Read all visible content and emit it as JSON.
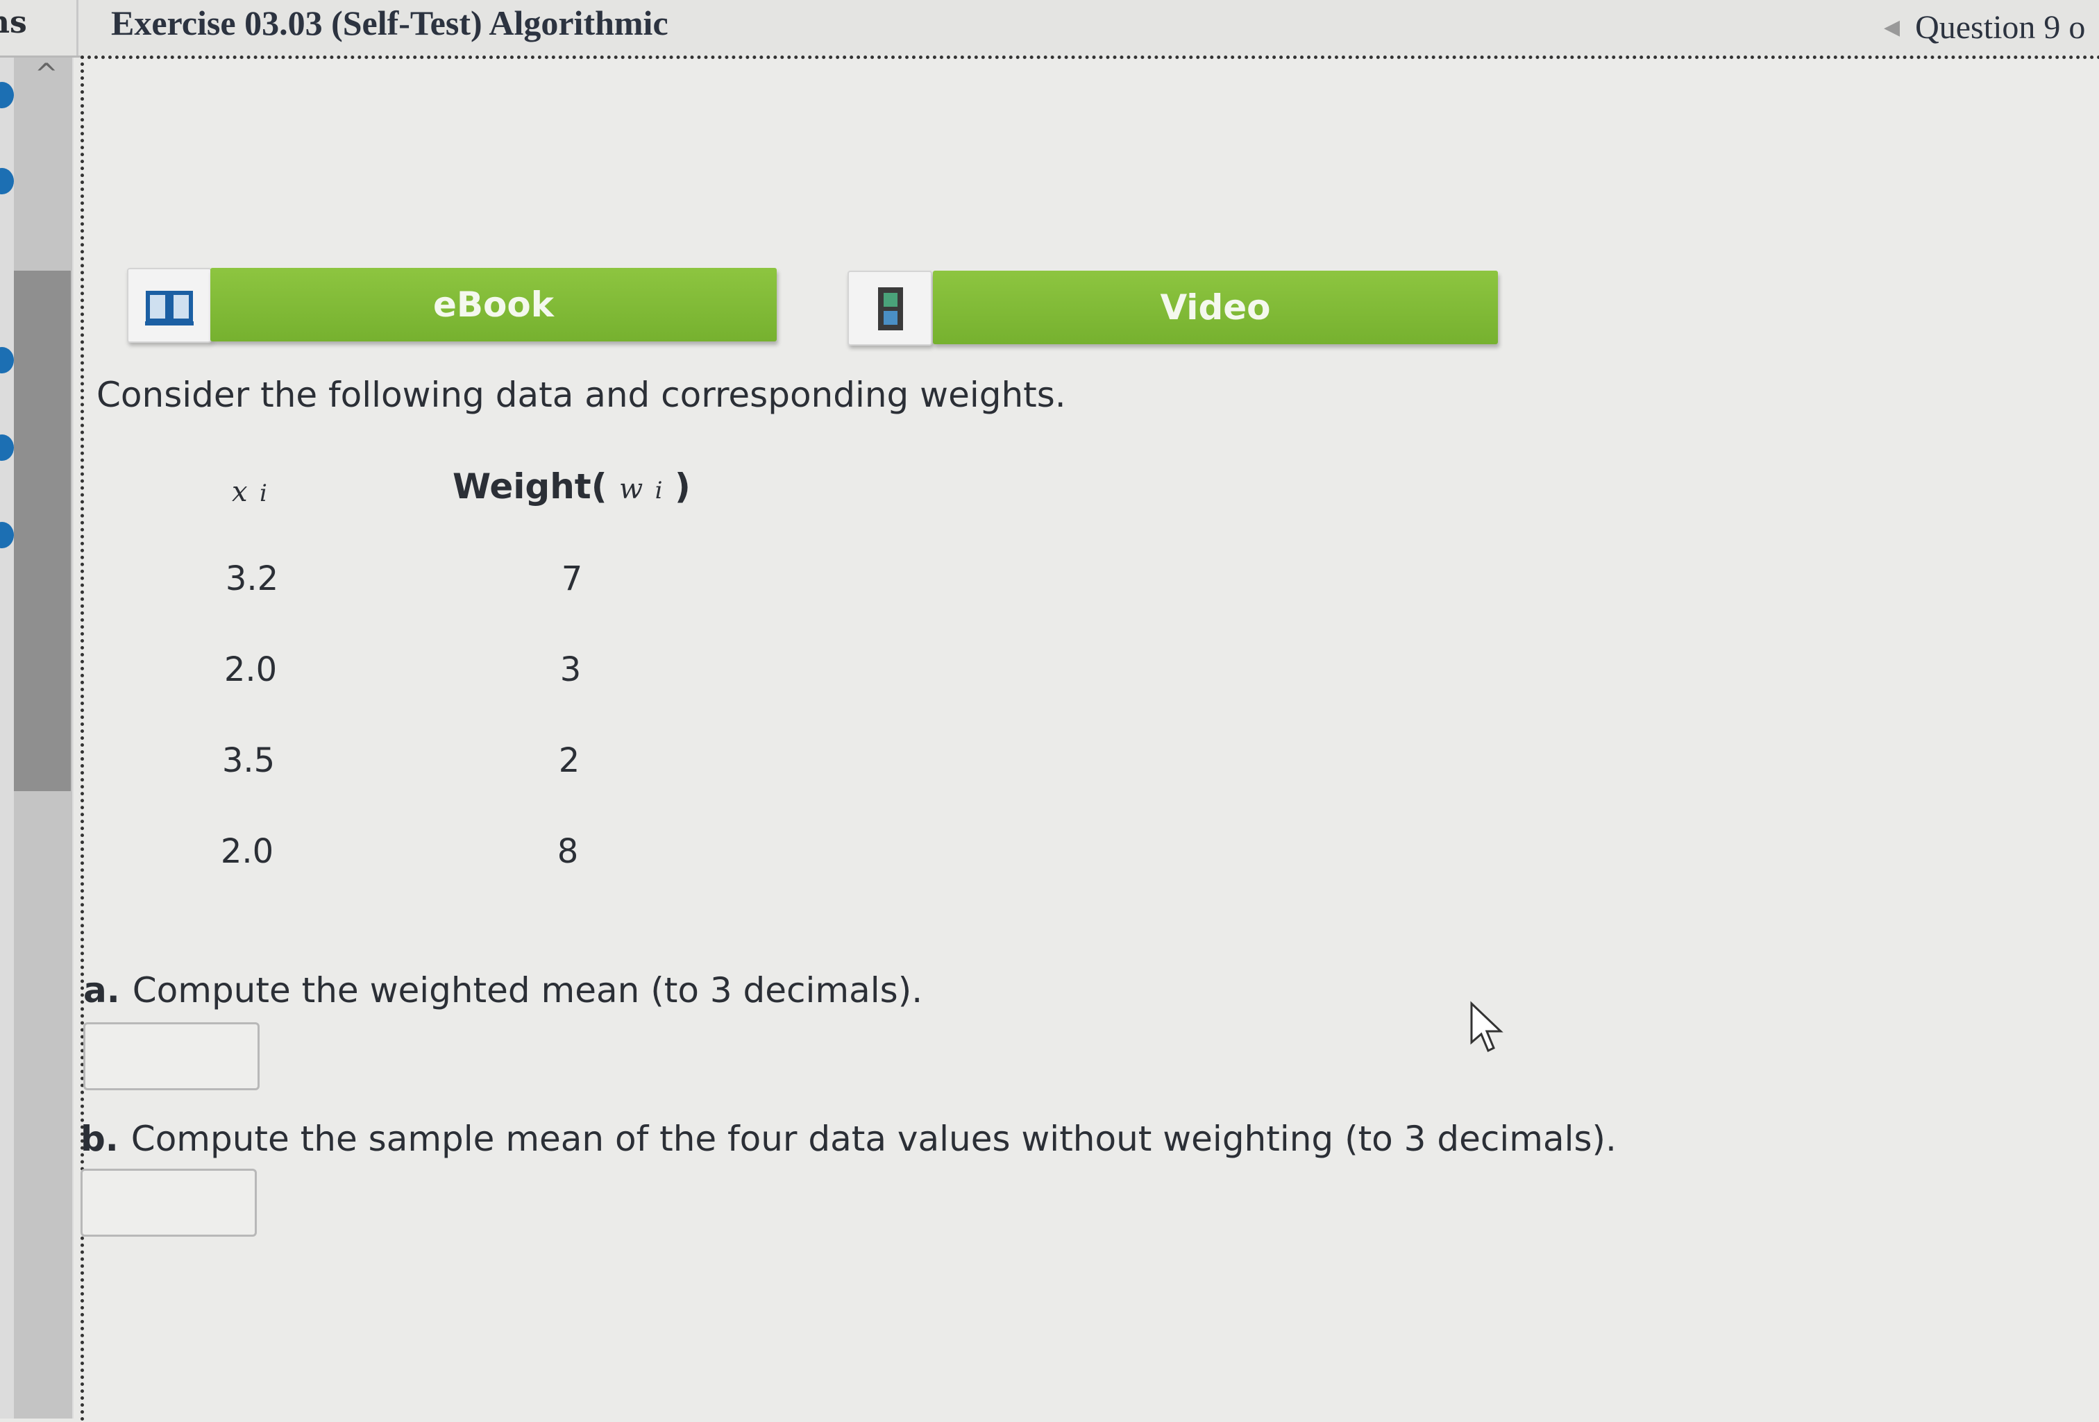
{
  "header": {
    "left_fragment": "ns",
    "title": "Exercise 03.03 (Self-Test) Algorithmic",
    "question_nav": "Question 9 o"
  },
  "buttons": {
    "ebook": "eBook",
    "video": "Video"
  },
  "colors": {
    "button_green": "#7fb935",
    "sidebar_dot": "#1c6fb3"
  },
  "problem": {
    "intro": "Consider the following data and corresponding weights.",
    "table": {
      "headers": {
        "x": "x",
        "x_sub": "i",
        "weight": "Weight(",
        "weight_var": "w",
        "weight_sub": "i",
        "weight_close": ")"
      },
      "rows": [
        {
          "x": "3.2",
          "w": "7"
        },
        {
          "x": "2.0",
          "w": "3"
        },
        {
          "x": "3.5",
          "w": "2"
        },
        {
          "x": "2.0",
          "w": "8"
        }
      ]
    },
    "parts": [
      {
        "label": "a.",
        "text": "Compute the weighted mean (to 3 decimals).",
        "value": ""
      },
      {
        "label": "b.",
        "text": "Compute the sample mean of the four data values without weighting (to 3 decimals).",
        "value": ""
      }
    ]
  }
}
